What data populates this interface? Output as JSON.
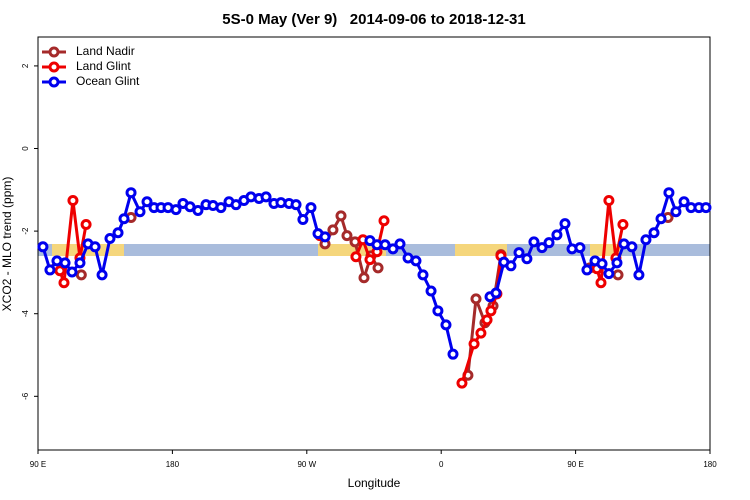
{
  "chart_data": {
    "type": "line",
    "title": "5S-0 May (Ver 9)   2014-09-06 to 2018-12-31",
    "x_label": "Longitude",
    "y_label": "XCO2 - MLO trend (ppm)",
    "xlim": [
      90,
      540
    ],
    "ylim": [
      -7.3,
      2.7
    ],
    "xticks": [
      {
        "value": 90,
        "label": "90 E"
      },
      {
        "value": 180,
        "label": "180"
      },
      {
        "value": 270,
        "label": "90 W"
      },
      {
        "value": 360,
        "label": "0"
      },
      {
        "value": 450,
        "label": "90 E"
      },
      {
        "value": 540,
        "label": "180"
      }
    ],
    "yticks": [
      2,
      0,
      -2,
      -4,
      -6
    ],
    "legend": "top-left",
    "series": [
      {
        "name": "Land Nadir",
        "color": "#a52a2a",
        "x": [
          102.0,
          null,
          119.0,
          null,
          152.3,
          null,
          282.2,
          287.5,
          292.9,
          296.9,
          302.3,
          308.3,
          313.0,
          317.7,
          null,
          377.9,
          383.3,
          389.3,
          394.7,
          400.0,
          null,
          459.6,
          null,
          478.4,
          null,
          511.9
        ],
        "values": [
          -2.89,
          null,
          -3.06,
          null,
          -1.67,
          null,
          -2.31,
          -1.97,
          -1.63,
          -2.11,
          -2.26,
          -3.13,
          -2.6,
          -2.89,
          null,
          -5.49,
          -3.64,
          -4.22,
          -3.81,
          -2.57,
          null,
          -2.89,
          null,
          -3.06,
          null,
          -1.67
        ]
      },
      {
        "name": "Land Glint",
        "color": "#ee0000",
        "x": [
          104.7,
          107.4,
          113.4,
          118.1,
          122.2,
          null,
          278.8,
          null,
          302.9,
          307.6,
          312.3,
          317.0,
          321.7,
          null,
          373.9,
          382.0,
          386.6,
          390.7,
          393.3,
          397.3,
          400.0,
          null,
          464.3,
          467.0,
          472.3,
          477.0,
          481.7
        ],
        "values": [
          -2.96,
          -3.25,
          -1.26,
          -2.65,
          -1.84,
          null,
          -2.11,
          null,
          -2.62,
          -2.21,
          -2.69,
          -2.5,
          -1.75,
          null,
          -5.68,
          -4.73,
          -4.47,
          -4.15,
          -3.93,
          -3.52,
          -2.6,
          null,
          -2.91,
          -3.25,
          -1.26,
          -2.65,
          -1.84
        ]
      },
      {
        "name": "Ocean Glint",
        "color": "#0000ee",
        "x": [
          93.3,
          98.0,
          102.7,
          108.1,
          112.8,
          118.1,
          123.5,
          128.2,
          132.9,
          138.2,
          143.6,
          147.6,
          152.3,
          158.3,
          163.0,
          167.7,
          172.4,
          177.1,
          182.4,
          187.1,
          191.8,
          197.1,
          202.5,
          207.2,
          212.5,
          217.9,
          222.6,
          227.9,
          232.6,
          238.0,
          242.7,
          248.0,
          252.7,
          258.1,
          262.8,
          267.4,
          272.8,
          277.5,
          282.2,
          null,
          312.3,
          317.0,
          322.4,
          327.7,
          332.4,
          337.8,
          343.1,
          347.8,
          353.2,
          357.8,
          363.2,
          367.9,
          null,
          392.7,
          396.7,
          402.0,
          406.7,
          412.1,
          417.4,
          422.1,
          427.5,
          432.2,
          437.5,
          442.9,
          447.6,
          452.9,
          457.6,
          463.0,
          467.7,
          472.3,
          477.7,
          482.4,
          487.7,
          492.4,
          497.1,
          502.5,
          507.2,
          512.5,
          517.2,
          522.6,
          527.3,
          532.6,
          537.3
        ],
        "values": [
          -2.38,
          -2.94,
          -2.72,
          -2.77,
          -2.99,
          -2.77,
          -2.31,
          -2.38,
          -3.06,
          -2.18,
          -2.04,
          -1.7,
          -1.07,
          -1.53,
          -1.29,
          -1.43,
          -1.43,
          -1.43,
          -1.48,
          -1.33,
          -1.41,
          -1.5,
          -1.36,
          -1.38,
          -1.43,
          -1.29,
          -1.36,
          -1.26,
          -1.17,
          -1.21,
          -1.17,
          -1.33,
          -1.31,
          -1.33,
          -1.36,
          -1.72,
          -1.43,
          -2.06,
          -2.14,
          null,
          -2.23,
          -2.33,
          -2.33,
          -2.43,
          -2.31,
          -2.65,
          -2.72,
          -3.06,
          -3.45,
          -3.93,
          -4.27,
          -4.98,
          null,
          -3.59,
          -3.5,
          -2.75,
          -2.84,
          -2.52,
          -2.67,
          -2.26,
          -2.4,
          -2.28,
          -2.09,
          -1.82,
          -2.43,
          -2.4,
          -2.94,
          -2.72,
          -2.79,
          -3.03,
          -2.77,
          -2.31,
          -2.38,
          -3.06,
          -2.21,
          -2.04,
          -1.7,
          -1.07,
          -1.53,
          -1.29,
          -1.43,
          -1.43,
          -1.43
        ]
      }
    ]
  }
}
